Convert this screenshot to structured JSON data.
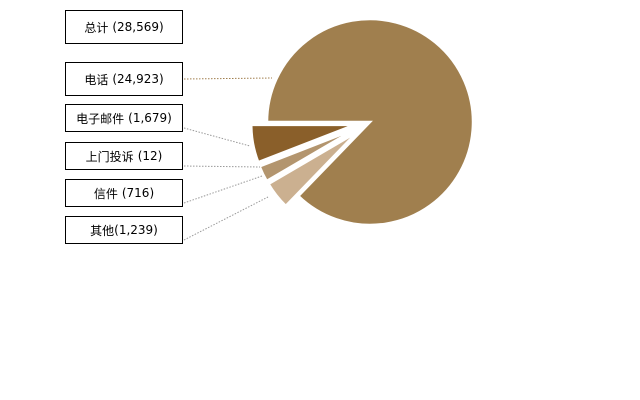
{
  "chart_data": {
    "type": "pie",
    "total_label": "总计",
    "total": "(28,569)",
    "categories": [
      "电话",
      "电子邮件",
      "上门投诉",
      "信件",
      "其他"
    ],
    "values": [
      24923,
      1679,
      12,
      716,
      1239
    ],
    "value_labels": [
      "(24,923)",
      "(1,679)",
      "(12)",
      "(716)",
      "(1,239)"
    ],
    "colors": [
      "#a07f4e",
      "#8a5f2a",
      "#b08a5c",
      "#b3956e",
      "#cbb090"
    ]
  }
}
